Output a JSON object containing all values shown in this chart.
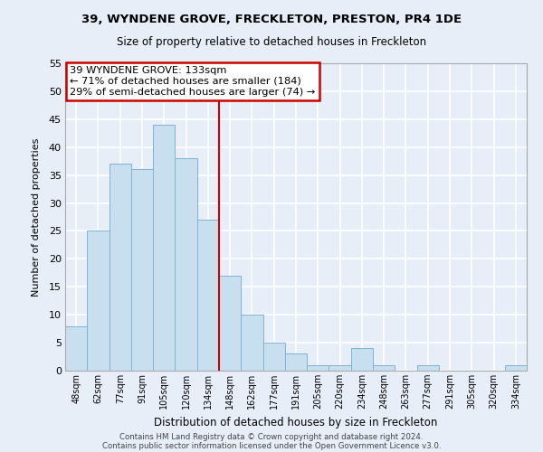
{
  "title1": "39, WYNDENE GROVE, FRECKLETON, PRESTON, PR4 1DE",
  "title2": "Size of property relative to detached houses in Freckleton",
  "xlabel": "Distribution of detached houses by size in Freckleton",
  "ylabel": "Number of detached properties",
  "bin_labels": [
    "48sqm",
    "62sqm",
    "77sqm",
    "91sqm",
    "105sqm",
    "120sqm",
    "134sqm",
    "148sqm",
    "162sqm",
    "177sqm",
    "191sqm",
    "205sqm",
    "220sqm",
    "234sqm",
    "248sqm",
    "263sqm",
    "277sqm",
    "291sqm",
    "305sqm",
    "320sqm",
    "334sqm"
  ],
  "bar_values": [
    8,
    25,
    37,
    36,
    44,
    38,
    27,
    17,
    10,
    5,
    3,
    1,
    1,
    4,
    1,
    0,
    1,
    0,
    0,
    0,
    1
  ],
  "highlight_index": 6,
  "bar_color": "#c8dff0",
  "bar_edge_color": "#7fb3d3",
  "highlight_line_color": "#cc0000",
  "ylim": [
    0,
    55
  ],
  "yticks": [
    0,
    5,
    10,
    15,
    20,
    25,
    30,
    35,
    40,
    45,
    50,
    55
  ],
  "annotation_title": "39 WYNDENE GROVE: 133sqm",
  "annotation_line1": "← 71% of detached houses are smaller (184)",
  "annotation_line2": "29% of semi-detached houses are larger (74) →",
  "annotation_box_color": "#ffffff",
  "annotation_box_edge": "#cc0000",
  "footer1": "Contains HM Land Registry data © Crown copyright and database right 2024.",
  "footer2": "Contains public sector information licensed under the Open Government Licence v3.0.",
  "background_color": "#e8eef8",
  "plot_bg_color": "#e8eef8",
  "grid_color": "#ffffff"
}
